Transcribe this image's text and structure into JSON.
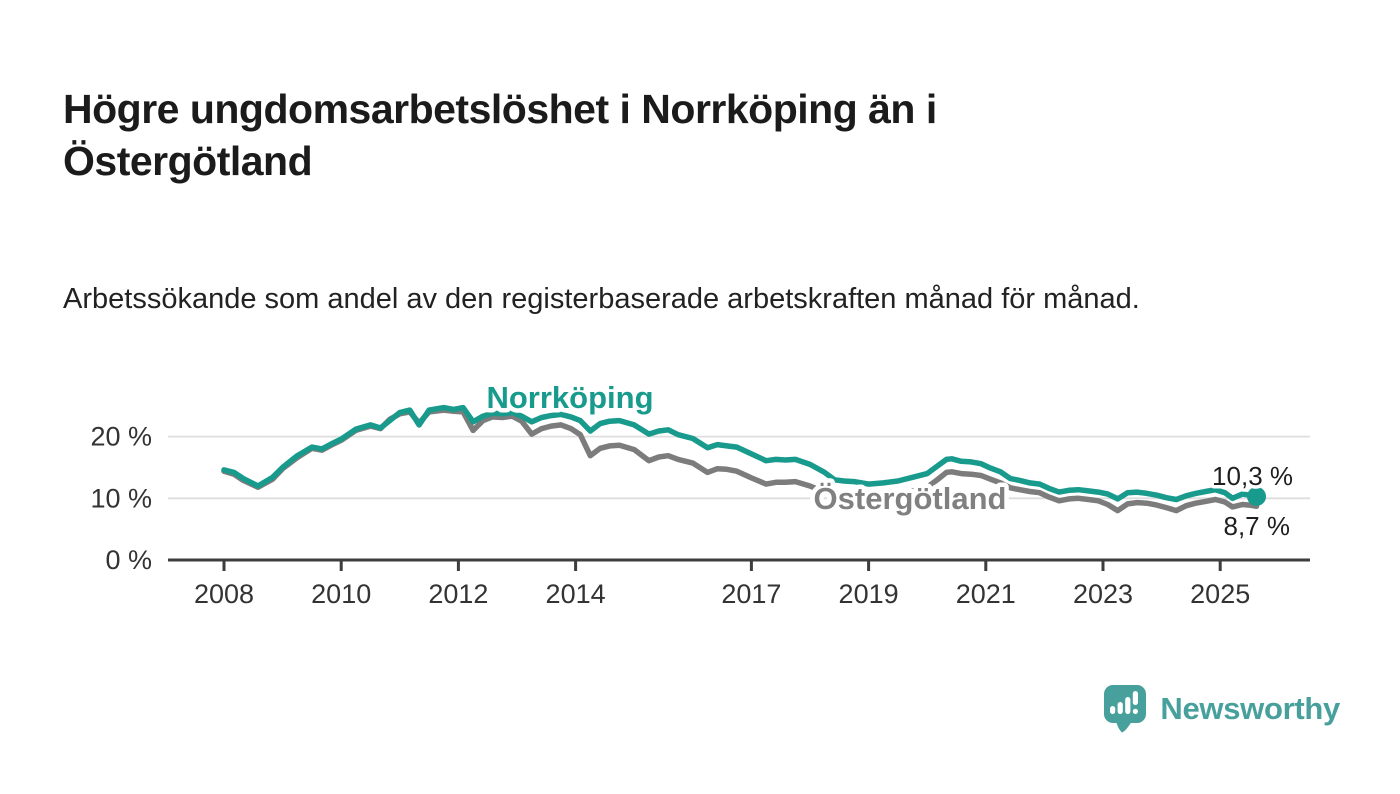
{
  "header": {
    "title": "Högre ungdomsarbetslöshet i Norrköping än i Östergötland",
    "subtitle": "Arbetssökande som andel av den registerbaserade arbetskraften månad för månad."
  },
  "chart_data": {
    "type": "line",
    "x": [
      2008.0,
      2008.17,
      2008.33,
      2008.58,
      2008.83,
      2009.0,
      2009.25,
      2009.5,
      2009.67,
      2009.83,
      2010.0,
      2010.25,
      2010.5,
      2010.67,
      2010.83,
      2011.0,
      2011.17,
      2011.33,
      2011.5,
      2011.75,
      2011.92,
      2012.08,
      2012.25,
      2012.42,
      2012.58,
      2012.75,
      2012.92,
      2013.08,
      2013.25,
      2013.42,
      2013.58,
      2013.75,
      2013.92,
      2014.08,
      2014.25,
      2014.42,
      2014.58,
      2014.75,
      2015.0,
      2015.25,
      2015.42,
      2015.58,
      2015.75,
      2016.0,
      2016.25,
      2016.42,
      2016.58,
      2016.75,
      2017.0,
      2017.25,
      2017.42,
      2017.58,
      2017.75,
      2018.0,
      2018.25,
      2018.42,
      2018.58,
      2018.75,
      2019.0,
      2019.25,
      2019.5,
      2019.75,
      2020.0,
      2020.17,
      2020.33,
      2020.42,
      2020.58,
      2020.75,
      2020.92,
      2021.08,
      2021.25,
      2021.42,
      2021.58,
      2021.75,
      2021.92,
      2022.08,
      2022.25,
      2022.42,
      2022.58,
      2022.75,
      2022.92,
      2023.08,
      2023.25,
      2023.42,
      2023.58,
      2023.75,
      2023.92,
      2024.08,
      2024.25,
      2024.42,
      2024.58,
      2024.75,
      2024.92,
      2025.08,
      2025.21,
      2025.38,
      2025.5,
      2025.62
    ],
    "series": [
      {
        "name": "Norrköping",
        "color": "#189a8c",
        "latest_value_label": "10,3 %",
        "values": [
          14.6,
          14.2,
          13.2,
          12.0,
          13.4,
          15.0,
          16.9,
          18.3,
          18.0,
          18.8,
          19.6,
          21.2,
          21.9,
          21.4,
          22.6,
          23.9,
          24.3,
          21.9,
          24.3,
          24.7,
          24.4,
          24.7,
          22.4,
          23.3,
          23.8,
          23.7,
          23.9,
          23.3,
          22.4,
          23.1,
          23.4,
          23.6,
          23.2,
          22.6,
          20.9,
          22.1,
          22.5,
          22.6,
          21.9,
          20.4,
          20.9,
          21.1,
          20.3,
          19.7,
          18.2,
          18.7,
          18.5,
          18.3,
          17.2,
          16.1,
          16.3,
          16.2,
          16.3,
          15.5,
          14.2,
          13.0,
          12.8,
          12.7,
          12.3,
          12.5,
          12.8,
          13.4,
          14.0,
          15.2,
          16.3,
          16.4,
          16.0,
          15.9,
          15.6,
          14.9,
          14.3,
          13.2,
          12.9,
          12.5,
          12.3,
          11.6,
          11.0,
          11.3,
          11.4,
          11.2,
          11.0,
          10.7,
          9.9,
          10.9,
          11.0,
          10.8,
          10.5,
          10.1,
          9.8,
          10.4,
          10.8,
          11.1,
          11.4,
          10.9,
          10.0,
          10.7,
          10.5,
          10.3
        ]
      },
      {
        "name": "Östergötland",
        "color": "#7c7c7c",
        "latest_value_label": "8,7 %",
        "values": [
          14.4,
          13.9,
          12.9,
          11.8,
          13.1,
          14.8,
          16.6,
          18.1,
          17.8,
          18.6,
          19.4,
          21.0,
          21.7,
          21.3,
          22.8,
          23.7,
          24.0,
          22.2,
          24.0,
          24.3,
          24.1,
          24.0,
          21.0,
          22.6,
          23.2,
          23.1,
          23.3,
          22.5,
          20.4,
          21.3,
          21.7,
          21.9,
          21.3,
          20.3,
          16.9,
          18.1,
          18.5,
          18.6,
          17.9,
          16.1,
          16.7,
          16.9,
          16.3,
          15.7,
          14.2,
          14.8,
          14.7,
          14.4,
          13.3,
          12.3,
          12.6,
          12.6,
          12.7,
          12.0,
          11.0,
          10.7,
          10.6,
          10.5,
          10.2,
          10.4,
          10.6,
          11.2,
          11.8,
          13.0,
          14.2,
          14.3,
          14.0,
          13.9,
          13.7,
          13.1,
          12.5,
          11.7,
          11.4,
          11.1,
          10.9,
          10.2,
          9.6,
          9.9,
          10.0,
          9.8,
          9.6,
          9.0,
          8.0,
          9.1,
          9.3,
          9.2,
          8.9,
          8.5,
          8.0,
          8.8,
          9.2,
          9.5,
          9.8,
          9.4,
          8.6,
          9.0,
          8.9,
          8.7
        ]
      }
    ],
    "yticks": [
      0,
      10,
      20
    ],
    "ytick_labels": [
      "0 %",
      "10 %",
      "20 %"
    ],
    "xticks": [
      2008,
      2010,
      2012,
      2014,
      2017,
      2019,
      2021,
      2023,
      2025
    ],
    "xtick_labels": [
      "2008",
      "2010",
      "2012",
      "2014",
      "2017",
      "2019",
      "2021",
      "2023",
      "2025"
    ],
    "ylim": [
      0,
      27
    ],
    "xlim": [
      2007.05,
      2026.5
    ],
    "grid": "horizontal",
    "legend_position": "inline-labels",
    "series_label_colors": {
      "Norrköping": "#189a8c",
      "Östergötland": "#808080"
    }
  },
  "footer": {
    "brand": "Newsworthy",
    "logo_icon": "bar-chart-speech-bubble-icon",
    "brand_color": "#47a09c"
  },
  "colors": {
    "axis": "#3d3d3d",
    "grid": "#dedede",
    "tick_label": "#333333",
    "value_label": "#1f1f1f"
  }
}
